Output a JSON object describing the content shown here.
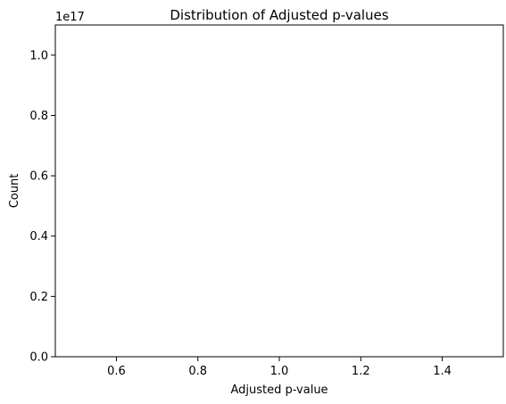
{
  "chart_data": {
    "type": "bar",
    "title": "Distribution of Adjusted p-values",
    "xlabel": "Adjusted p-value",
    "ylabel": "Count",
    "xlim": [
      0.45,
      1.55
    ],
    "ylim": [
      0,
      1.1e+17
    ],
    "x_ticks": [
      0.6,
      0.8,
      1.0,
      1.2,
      1.4
    ],
    "x_tick_labels": [
      "0.6",
      "0.8",
      "1.0",
      "1.2",
      "1.4"
    ],
    "y_ticks": [
      0,
      0.2,
      0.4,
      0.6,
      0.8,
      1.0
    ],
    "y_tick_labels": [
      "0.0",
      "0.2",
      "0.4",
      "0.6",
      "0.8",
      "1.0"
    ],
    "y_offset_text": "1e17",
    "grid": false,
    "series": []
  }
}
